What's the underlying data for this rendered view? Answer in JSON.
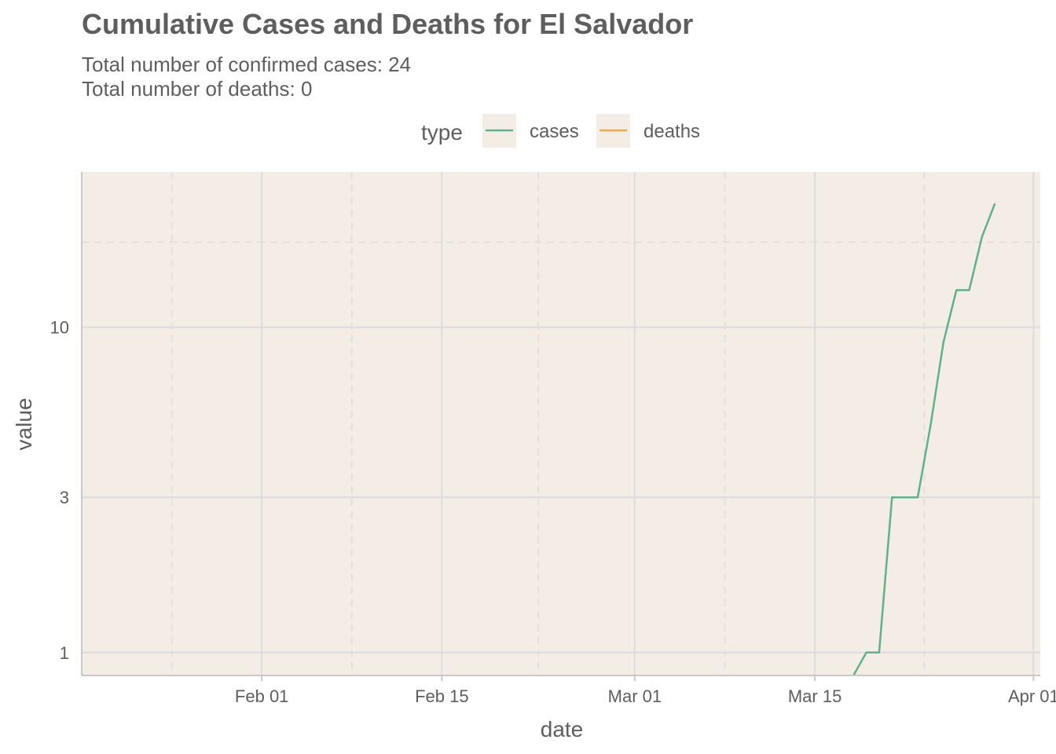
{
  "title": "Cumulative Cases and Deaths for El Salvador",
  "subtitle_lines": [
    "Total number of confirmed cases: 24",
    "Total number of deaths: 0"
  ],
  "legend": {
    "title": "type",
    "entries": [
      {
        "label": "cases",
        "color": "#5fb08e"
      },
      {
        "label": "deaths",
        "color": "#f5a742"
      }
    ]
  },
  "colors": {
    "panel_background": "#f3ede6",
    "grid_major": "#dcdcdc",
    "grid_minor": "#e2e0dd",
    "cases": "#5fb08e",
    "deaths": "#f5a742"
  },
  "chart_data": {
    "type": "line",
    "title": "Cumulative Cases and Deaths for El Salvador",
    "xlabel": "date",
    "ylabel": "value",
    "y_scale": "log10",
    "xlim": [
      "2020-01-18",
      "2020-03-31"
    ],
    "ylim": [
      0.85,
      30
    ],
    "x_ticks": [
      "2020-02-01",
      "2020-02-15",
      "2020-03-01",
      "2020-03-15",
      "2020-04-01"
    ],
    "x_tick_labels": [
      "Feb 01",
      "Feb 15",
      "Mar 01",
      "Mar 15",
      "Apr 01"
    ],
    "y_ticks": [
      1,
      3,
      10
    ],
    "y_tick_labels": [
      "1",
      "3",
      "10"
    ],
    "grid": true,
    "legend_position": "top",
    "series": [
      {
        "name": "cases",
        "color": "#5fb08e",
        "points": [
          [
            "2020-03-18",
            0.85
          ],
          [
            "2020-03-19",
            1
          ],
          [
            "2020-03-20",
            1
          ],
          [
            "2020-03-21",
            3
          ],
          [
            "2020-03-22",
            3
          ],
          [
            "2020-03-23",
            3
          ],
          [
            "2020-03-24",
            5
          ],
          [
            "2020-03-25",
            9
          ],
          [
            "2020-03-26",
            13
          ],
          [
            "2020-03-27",
            13
          ],
          [
            "2020-03-28",
            19
          ],
          [
            "2020-03-29",
            24
          ]
        ]
      },
      {
        "name": "deaths",
        "color": "#f5a742",
        "points": []
      }
    ]
  }
}
